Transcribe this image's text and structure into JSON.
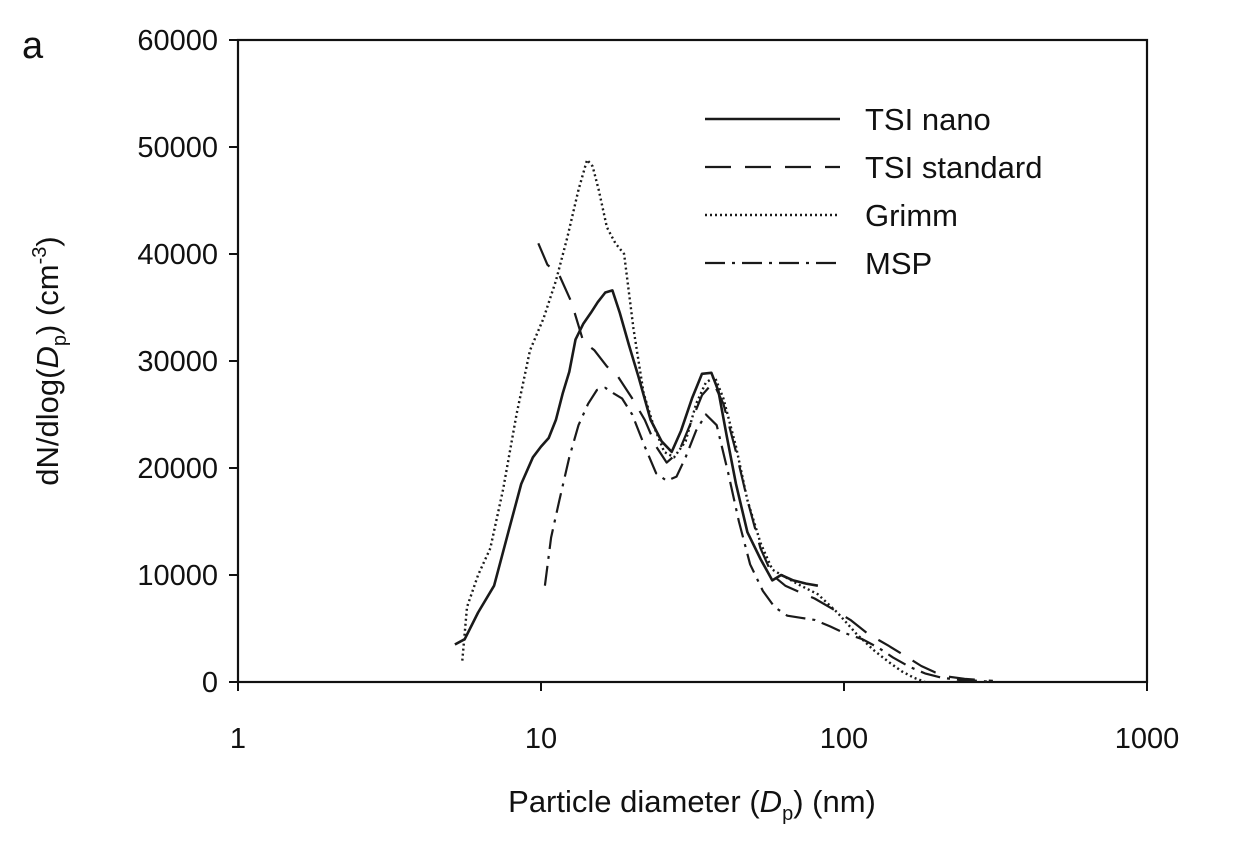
{
  "panel_label": "a",
  "chart_data": {
    "type": "line",
    "title": "",
    "xlabel": "Particle diameter (Dp) (nm)",
    "xlabel_parts": {
      "pre": "Particle diameter (",
      "italic": "D",
      "sub": "p",
      "post": ") (nm)"
    },
    "ylabel": "dN/dlog(Dp) (cm-3)",
    "ylabel_parts": {
      "pre": "dN/dlog(",
      "italic": "D",
      "sub": "p",
      "mid": ") (cm",
      "sup": "-3",
      "post": ")"
    },
    "xscale": "log",
    "xlim": [
      1,
      1000
    ],
    "ylim": [
      0,
      60000
    ],
    "xticks": [
      1,
      10,
      100,
      1000
    ],
    "xtick_labels": [
      "1",
      "10",
      "100",
      "1000"
    ],
    "yticks": [
      0,
      10000,
      20000,
      30000,
      40000,
      50000,
      60000
    ],
    "ytick_labels": [
      "0",
      "10000",
      "20000",
      "30000",
      "40000",
      "50000",
      "60000"
    ],
    "grid": false,
    "legend_position": "top-right",
    "series": [
      {
        "name": "TSI nano",
        "style": "solid",
        "x": [
          5.2,
          5.6,
          6.2,
          7.0,
          7.8,
          8.6,
          9.4,
          10.0,
          10.6,
          11.2,
          11.8,
          12.4,
          13.0,
          13.8,
          14.6,
          15.4,
          16.3,
          17.2,
          18.2,
          19.5,
          21.0,
          23.0,
          25.0,
          27.0,
          29.0,
          31.5,
          34.0,
          36.5,
          38.5,
          41.0,
          44.0,
          48.0,
          53.0,
          58.0,
          62.0,
          68.0,
          75.0,
          82.0
        ],
        "y": [
          3500,
          4000,
          6500,
          9000,
          14000,
          18500,
          21000,
          22000,
          22800,
          24500,
          27000,
          29000,
          32000,
          33500,
          34500,
          35500,
          36400,
          36600,
          34500,
          31500,
          28500,
          24500,
          22500,
          21500,
          23500,
          26500,
          28800,
          28900,
          27200,
          23000,
          18500,
          14000,
          11500,
          9500,
          10000,
          9500,
          9200,
          9000
        ]
      },
      {
        "name": "TSI standard",
        "style": "dashed",
        "x": [
          9.8,
          10.5,
          11.5,
          12.6,
          13.8,
          15.0,
          16.5,
          18.0,
          20.0,
          22.0,
          24.0,
          26.0,
          28.5,
          31.0,
          34.0,
          37.0,
          40.0,
          44.0,
          48.0,
          53.0,
          58.0,
          64.0,
          70.0,
          80.0,
          92.0,
          105.0,
          120.0,
          140.0,
          160.0,
          180.0,
          200.0,
          220.0,
          250.0,
          280.0,
          310.0
        ],
        "y": [
          41000,
          39000,
          38000,
          35500,
          31800,
          31000,
          29500,
          28500,
          26500,
          24500,
          22000,
          20500,
          21500,
          24000,
          26800,
          28000,
          26000,
          21500,
          17000,
          12500,
          10000,
          9000,
          8500,
          7800,
          6800,
          5800,
          4500,
          3400,
          2400,
          1500,
          900,
          500,
          300,
          200,
          100
        ]
      },
      {
        "name": "Grimm",
        "style": "dotted",
        "x": [
          5.5,
          5.7,
          6.2,
          6.8,
          7.5,
          8.3,
          9.2,
          10.2,
          11.2,
          12.2,
          13.3,
          14.2,
          14.8,
          15.5,
          16.5,
          17.6,
          18.8,
          20.2,
          21.8,
          23.5,
          25.5,
          27.5,
          30.0,
          32.5,
          35.0,
          37.5,
          40.0,
          44.0,
          48.0,
          53.0,
          58.0,
          64.0,
          72.0,
          82.0,
          95.0,
          110.0,
          125.0,
          140.0,
          155.0,
          170.0,
          185.0
        ],
        "y": [
          2000,
          7000,
          10000,
          12500,
          18000,
          25000,
          31000,
          34000,
          37500,
          41500,
          46000,
          48800,
          48200,
          46000,
          42500,
          41000,
          40000,
          33000,
          27000,
          24000,
          21500,
          21000,
          22500,
          26000,
          28000,
          28500,
          26500,
          22000,
          17000,
          13000,
          10500,
          9800,
          9000,
          8200,
          6500,
          4500,
          3000,
          1900,
          1000,
          400,
          0
        ]
      },
      {
        "name": "MSP",
        "style": "dashdot",
        "x": [
          10.3,
          10.8,
          11.5,
          12.4,
          13.3,
          14.3,
          15.3,
          16.3,
          17.3,
          18.5,
          20.0,
          22.0,
          24.0,
          26.0,
          28.0,
          30.0,
          32.5,
          35.0,
          38.0,
          41.5,
          45.0,
          49.0,
          54.0,
          59.0,
          65.0,
          72.0,
          80.0,
          90.0,
          100.0,
          115.0,
          130.0,
          145.0,
          165.0,
          185.0,
          210.0,
          240.0,
          280.0,
          310.0
        ],
        "y": [
          9000,
          13500,
          17000,
          21000,
          24000,
          26000,
          27300,
          27500,
          27000,
          26500,
          25000,
          22000,
          19500,
          18800,
          19200,
          21000,
          23500,
          25000,
          24000,
          19500,
          15000,
          11000,
          8500,
          7000,
          6200,
          6000,
          5800,
          5200,
          4600,
          4000,
          3200,
          2300,
          1400,
          800,
          400,
          200,
          100,
          0
        ]
      }
    ]
  }
}
